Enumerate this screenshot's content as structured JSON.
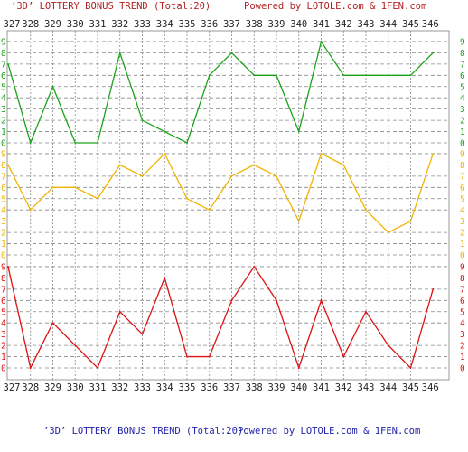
{
  "title": {
    "left": "’3D’ LOTTERY BONUS TREND (Total:20)",
    "right": "Powered by LOTOLE.com & 1FEN.com"
  },
  "colors": {
    "title_left": "#b22222",
    "title_right": "#b22222",
    "footer_left": "#2222aa",
    "footer_right": "#2222aa",
    "axis_text": "#222222",
    "grid": "#888888"
  },
  "chart_data": [
    {
      "type": "line",
      "name": "top",
      "color": "#1aa31a",
      "label_color": "#1aa31a",
      "x": [
        327,
        328,
        329,
        330,
        331,
        332,
        333,
        334,
        335,
        336,
        337,
        338,
        339,
        340,
        341,
        342,
        343,
        344,
        345,
        346
      ],
      "values": [
        7,
        0,
        5,
        0,
        0,
        8,
        2,
        1,
        0,
        6,
        8,
        6,
        6,
        1,
        9,
        6,
        6,
        6,
        6,
        8
      ],
      "ylim": [
        0,
        9
      ]
    },
    {
      "type": "line",
      "name": "middle",
      "color": "#f0b400",
      "label_color": "#f0b400",
      "x": [
        327,
        328,
        329,
        330,
        331,
        332,
        333,
        334,
        335,
        336,
        337,
        338,
        339,
        340,
        341,
        342,
        343,
        344,
        345,
        346
      ],
      "values": [
        8,
        4,
        6,
        6,
        5,
        8,
        7,
        9,
        5,
        4,
        7,
        8,
        7,
        3,
        9,
        8,
        4,
        2,
        3,
        9
      ],
      "ylim": [
        0,
        9
      ]
    },
    {
      "type": "line",
      "name": "bottom",
      "color": "#dd1111",
      "label_color": "#dd1111",
      "x": [
        327,
        328,
        329,
        330,
        331,
        332,
        333,
        334,
        335,
        336,
        337,
        338,
        339,
        340,
        341,
        342,
        343,
        344,
        345,
        346
      ],
      "values": [
        9,
        0,
        4,
        2,
        0,
        5,
        3,
        8,
        1,
        1,
        6,
        9,
        6,
        0,
        6,
        1,
        5,
        2,
        0,
        7
      ],
      "ylim": [
        0,
        9
      ]
    }
  ],
  "x_ticks": [
    "327",
    "328",
    "329",
    "330",
    "331",
    "332",
    "333",
    "334",
    "335",
    "336",
    "337",
    "338",
    "339",
    "340",
    "341",
    "342",
    "343",
    "344",
    "345",
    "346"
  ],
  "y_ticks": [
    "0",
    "1",
    "2",
    "3",
    "4",
    "5",
    "6",
    "7",
    "8",
    "9"
  ]
}
